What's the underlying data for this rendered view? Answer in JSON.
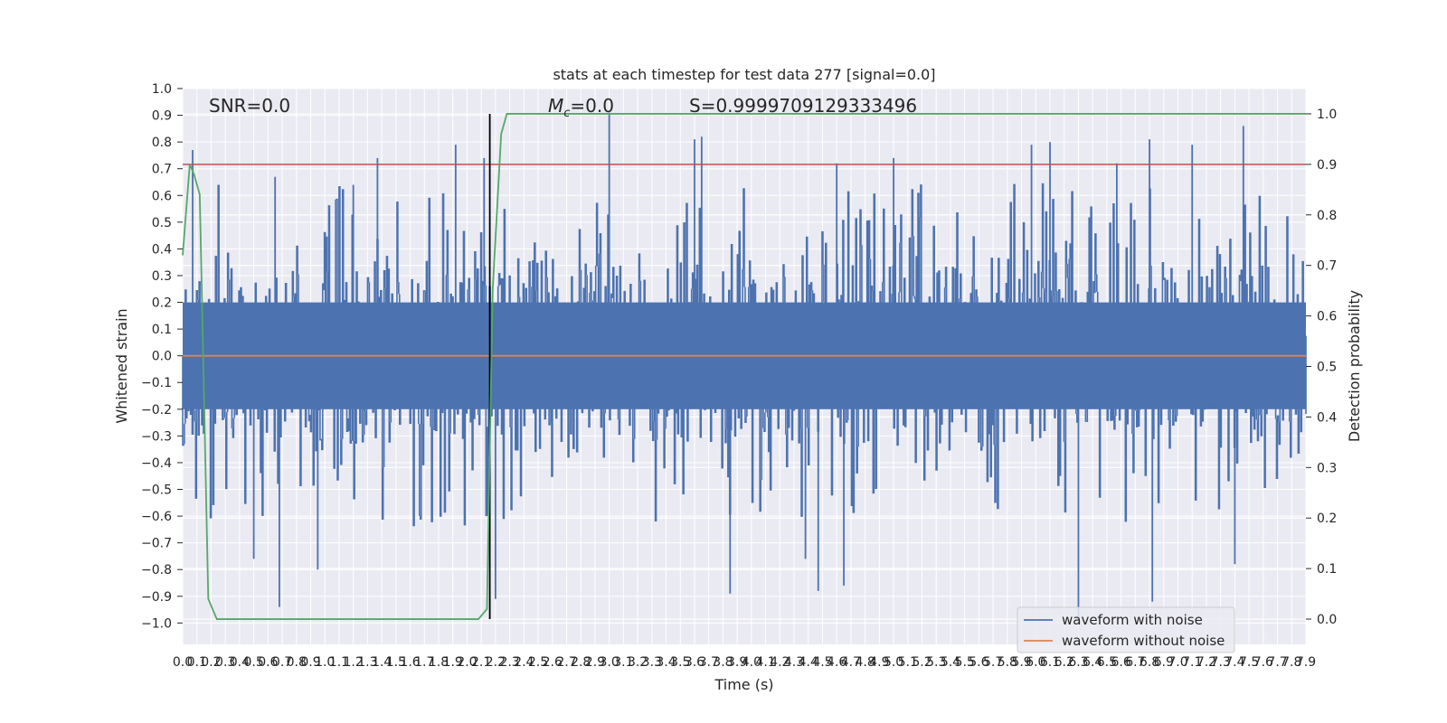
{
  "chart_data": {
    "type": "line",
    "title": "stats at each timestep for test data 277 [signal=0.0]",
    "xlabel": "Time (s)",
    "ylabel": "Whitened strain",
    "y2label": "Detection probability",
    "xlim": [
      0.0,
      7.9
    ],
    "ylim": [
      -1.08,
      1.0
    ],
    "y2lim": [
      -0.05,
      1.05
    ],
    "x_ticks": [
      "0.0",
      "0.1",
      "0.2",
      "0.3",
      "0.4",
      "0.5",
      "0.6",
      "0.7",
      "0.8",
      "0.9",
      "1.0",
      "1.1",
      "1.2",
      "1.3",
      "1.4",
      "1.5",
      "1.6",
      "1.7",
      "1.8",
      "1.9",
      "2.0",
      "2.1",
      "2.2",
      "2.3",
      "2.4",
      "2.5",
      "2.6",
      "2.7",
      "2.8",
      "2.9",
      "3.0",
      "3.1",
      "3.2",
      "3.3",
      "3.4",
      "3.5",
      "3.6",
      "3.7",
      "3.8",
      "3.9",
      "4.0",
      "4.1",
      "4.2",
      "4.3",
      "4.4",
      "4.5",
      "4.6",
      "4.7",
      "4.8",
      "4.9",
      "5.0",
      "5.1",
      "5.2",
      "5.3",
      "5.4",
      "5.5",
      "5.6",
      "5.7",
      "5.8",
      "5.9",
      "6.0",
      "6.1",
      "6.2",
      "6.3",
      "6.4",
      "6.5",
      "6.6",
      "6.7",
      "6.8",
      "6.9",
      "7.0",
      "7.1",
      "7.2",
      "7.3",
      "7.4",
      "7.5",
      "7.6",
      "7.7",
      "7.8",
      "7.9"
    ],
    "y_ticks": [
      "1.0",
      "0.9",
      "0.8",
      "0.7",
      "0.6",
      "0.5",
      "0.4",
      "0.3",
      "0.2",
      "0.1",
      "0.0",
      "−0.1",
      "−0.2",
      "−0.3",
      "−0.4",
      "−0.5",
      "−0.6",
      "−0.7",
      "−0.8",
      "−0.9",
      "−1.0"
    ],
    "y2_ticks": [
      "1.0",
      "0.9",
      "0.8",
      "0.7",
      "0.6",
      "0.5",
      "0.4",
      "0.3",
      "0.2",
      "0.1",
      "0.0"
    ],
    "annotations": {
      "snr": "SNR=0.0",
      "mc_symbol": "M",
      "mc_sub": "c",
      "mc_value": "=0.0",
      "s": "S=0.9999709129333496"
    },
    "series": [
      {
        "name": "waveform with noise",
        "color": "#4c72b0",
        "noise_envelope": {
          "typical_abs": 0.35,
          "peak_max": 0.91,
          "peak_min": -1.0
        },
        "peaks": [
          [
            0.07,
            0.77
          ],
          [
            0.65,
            0.67
          ],
          [
            1.2,
            0.64
          ],
          [
            1.37,
            0.74
          ],
          [
            1.92,
            0.79
          ],
          [
            2.12,
            0.74
          ],
          [
            3.0,
            0.91
          ],
          [
            3.6,
            0.81
          ],
          [
            3.65,
            0.82
          ],
          [
            4.6,
            0.72
          ],
          [
            5.0,
            0.74
          ],
          [
            5.97,
            0.79
          ],
          [
            6.1,
            0.8
          ],
          [
            6.57,
            0.72
          ],
          [
            6.8,
            0.81
          ],
          [
            7.1,
            0.79
          ],
          [
            7.46,
            0.86
          ]
        ],
        "troughs": [
          [
            0.68,
            -0.94
          ],
          [
            0.5,
            -0.76
          ],
          [
            0.95,
            -0.8
          ],
          [
            2.2,
            -0.91
          ],
          [
            3.85,
            -0.89
          ],
          [
            4.47,
            -0.88
          ],
          [
            4.38,
            -0.76
          ],
          [
            4.65,
            -0.86
          ],
          [
            6.3,
            -0.99
          ],
          [
            6.82,
            -0.92
          ],
          [
            7.4,
            -0.78
          ]
        ]
      },
      {
        "name": "waveform without noise",
        "color": "#dd8452",
        "x": [
          0.0,
          7.9
        ],
        "y": [
          0.0,
          0.0
        ]
      },
      {
        "name": "",
        "axis": "right",
        "color": "#55a868",
        "x": [
          0.0,
          0.05,
          0.08,
          0.12,
          0.18,
          0.24,
          2.08,
          2.14,
          2.18,
          2.24,
          2.28,
          7.9
        ],
        "y": [
          0.72,
          0.9,
          0.88,
          0.84,
          0.04,
          0.0,
          0.0,
          0.02,
          0.65,
          0.96,
          1.0,
          1.0
        ]
      }
    ],
    "threshold": {
      "axis": "right",
      "value": 0.9,
      "color": "#c44e52"
    },
    "vline": {
      "x": 2.16,
      "color": "#000000"
    },
    "legend": {
      "placement": "lower-right"
    },
    "grid": true,
    "background": "#eaeaf2"
  }
}
